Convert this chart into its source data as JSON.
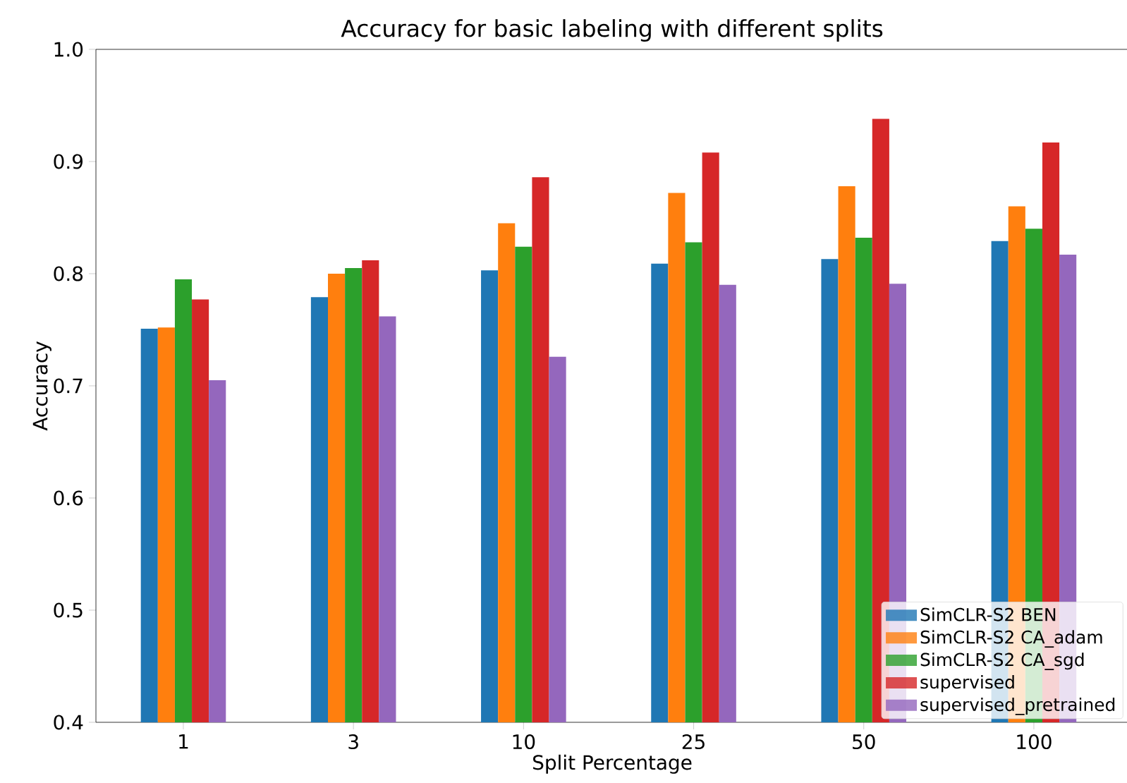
{
  "chart_data": {
    "type": "bar",
    "title": "Accuracy for basic labeling with different splits",
    "xlabel": "Split Percentage",
    "ylabel": "Accuracy",
    "categories": [
      "1",
      "3",
      "10",
      "25",
      "50",
      "100"
    ],
    "series": [
      {
        "name": "SimCLR-S2 BEN",
        "color": "#1f77b4",
        "values": [
          0.751,
          0.779,
          0.803,
          0.809,
          0.813,
          0.829
        ]
      },
      {
        "name": "SimCLR-S2 CA_adam",
        "color": "#ff7f0e",
        "values": [
          0.752,
          0.8,
          0.845,
          0.872,
          0.878,
          0.86
        ]
      },
      {
        "name": "SimCLR-S2 CA_sgd",
        "color": "#2ca02c",
        "values": [
          0.795,
          0.805,
          0.824,
          0.828,
          0.832,
          0.84
        ]
      },
      {
        "name": "supervised",
        "color": "#d62728",
        "values": [
          0.777,
          0.812,
          0.886,
          0.908,
          0.938,
          0.917
        ]
      },
      {
        "name": "supervised_pretrained",
        "color": "#9467bd",
        "values": [
          0.705,
          0.762,
          0.726,
          0.79,
          0.791,
          0.817
        ]
      }
    ],
    "ylim": [
      0.4,
      1.0
    ],
    "yticks": [
      0.4,
      0.5,
      0.6,
      0.7,
      0.8,
      0.9,
      {
        "value": 1.0,
        "label": "1.0"
      }
    ],
    "legend": "bottom right"
  }
}
